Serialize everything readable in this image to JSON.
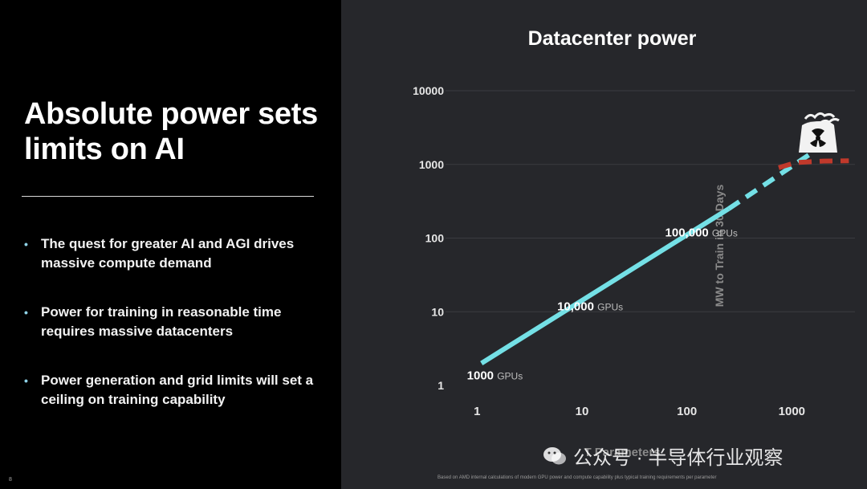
{
  "slide": {
    "headline": "Absolute power sets limits on AI",
    "bullets": [
      "The quest for greater AI and AGI drives massive compute demand",
      "Power for training in reasonable time requires massive datacenters",
      "Power generation and grid limits will set a ceiling on training capability"
    ],
    "slide_number": "8"
  },
  "chart_title": "Datacenter power",
  "footnote": "Based on AMD internal calculations of modern GPU power and compute capability plus typical training requirements per parameter",
  "watermark": "公众号 · 半导体行业观察",
  "colors": {
    "background_left": "#000000",
    "background_right": "#26272b",
    "trend_line": "#74e0e6",
    "ceiling_line": "#c0392b",
    "bullet_dot": "#8fd3e8"
  },
  "chart_data": {
    "type": "line",
    "title": "Datacenter power",
    "ylabel": "MW to Train in 30 Days",
    "xlabel": "T Parameters",
    "x_scale": "log",
    "y_scale": "log",
    "xlim": [
      0.5,
      4000
    ],
    "ylim": [
      1,
      10000
    ],
    "x_ticks": [
      "1",
      "10",
      "100",
      "1000"
    ],
    "y_ticks": [
      "10000",
      "1000",
      "100",
      "10",
      "1"
    ],
    "grid": true,
    "series": [
      {
        "style": "solid",
        "color": "#74e0e6",
        "x": [
          1.1,
          250
        ],
        "y": [
          2,
          250
        ]
      },
      {
        "style": "dashed",
        "color": "#74e0e6",
        "x": [
          250,
          2200
        ],
        "y": [
          250,
          2000
        ]
      },
      {
        "style": "dashed",
        "color": "#c0392b",
        "x": [
          750,
          1100,
          2000,
          3500
        ],
        "y": [
          900,
          1060,
          1110,
          1120
        ]
      }
    ],
    "annotations": [
      {
        "text": "1000",
        "unit": "GPUs",
        "x": 0.8,
        "y": 1.2
      },
      {
        "text": "10,000",
        "unit": "GPUs",
        "x": 5.8,
        "y": 10.5
      },
      {
        "text": "100,000",
        "unit": "GPUs",
        "x": 62,
        "y": 105
      }
    ],
    "icon": "nuclear-power-plant-icon"
  }
}
